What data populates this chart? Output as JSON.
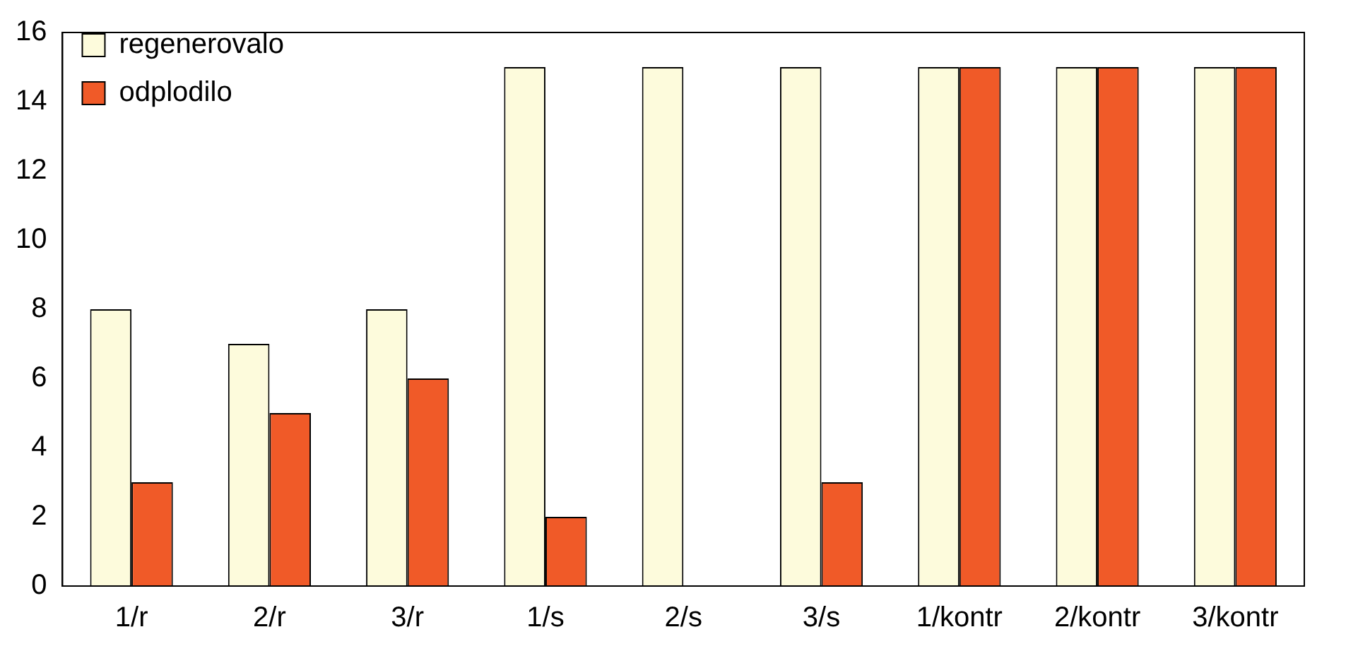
{
  "chart_data": {
    "type": "bar",
    "categories": [
      "1/r",
      "2/r",
      "3/r",
      "1/s",
      "2/s",
      "3/s",
      "1/kontr",
      "2/kontr",
      "3/kontr"
    ],
    "series": [
      {
        "name": "regenerovalo",
        "color": "#fdfbdc",
        "values": [
          8,
          7,
          8,
          15,
          15,
          15,
          15,
          15,
          15
        ]
      },
      {
        "name": "odplodilo",
        "color": "#f05a28",
        "values": [
          3,
          5,
          6,
          2,
          0,
          3,
          15,
          15,
          15
        ]
      }
    ],
    "ylim": [
      0,
      16
    ],
    "yticks": [
      0,
      2,
      4,
      6,
      8,
      10,
      12,
      14,
      16
    ],
    "grid": false,
    "legend": "top left"
  }
}
